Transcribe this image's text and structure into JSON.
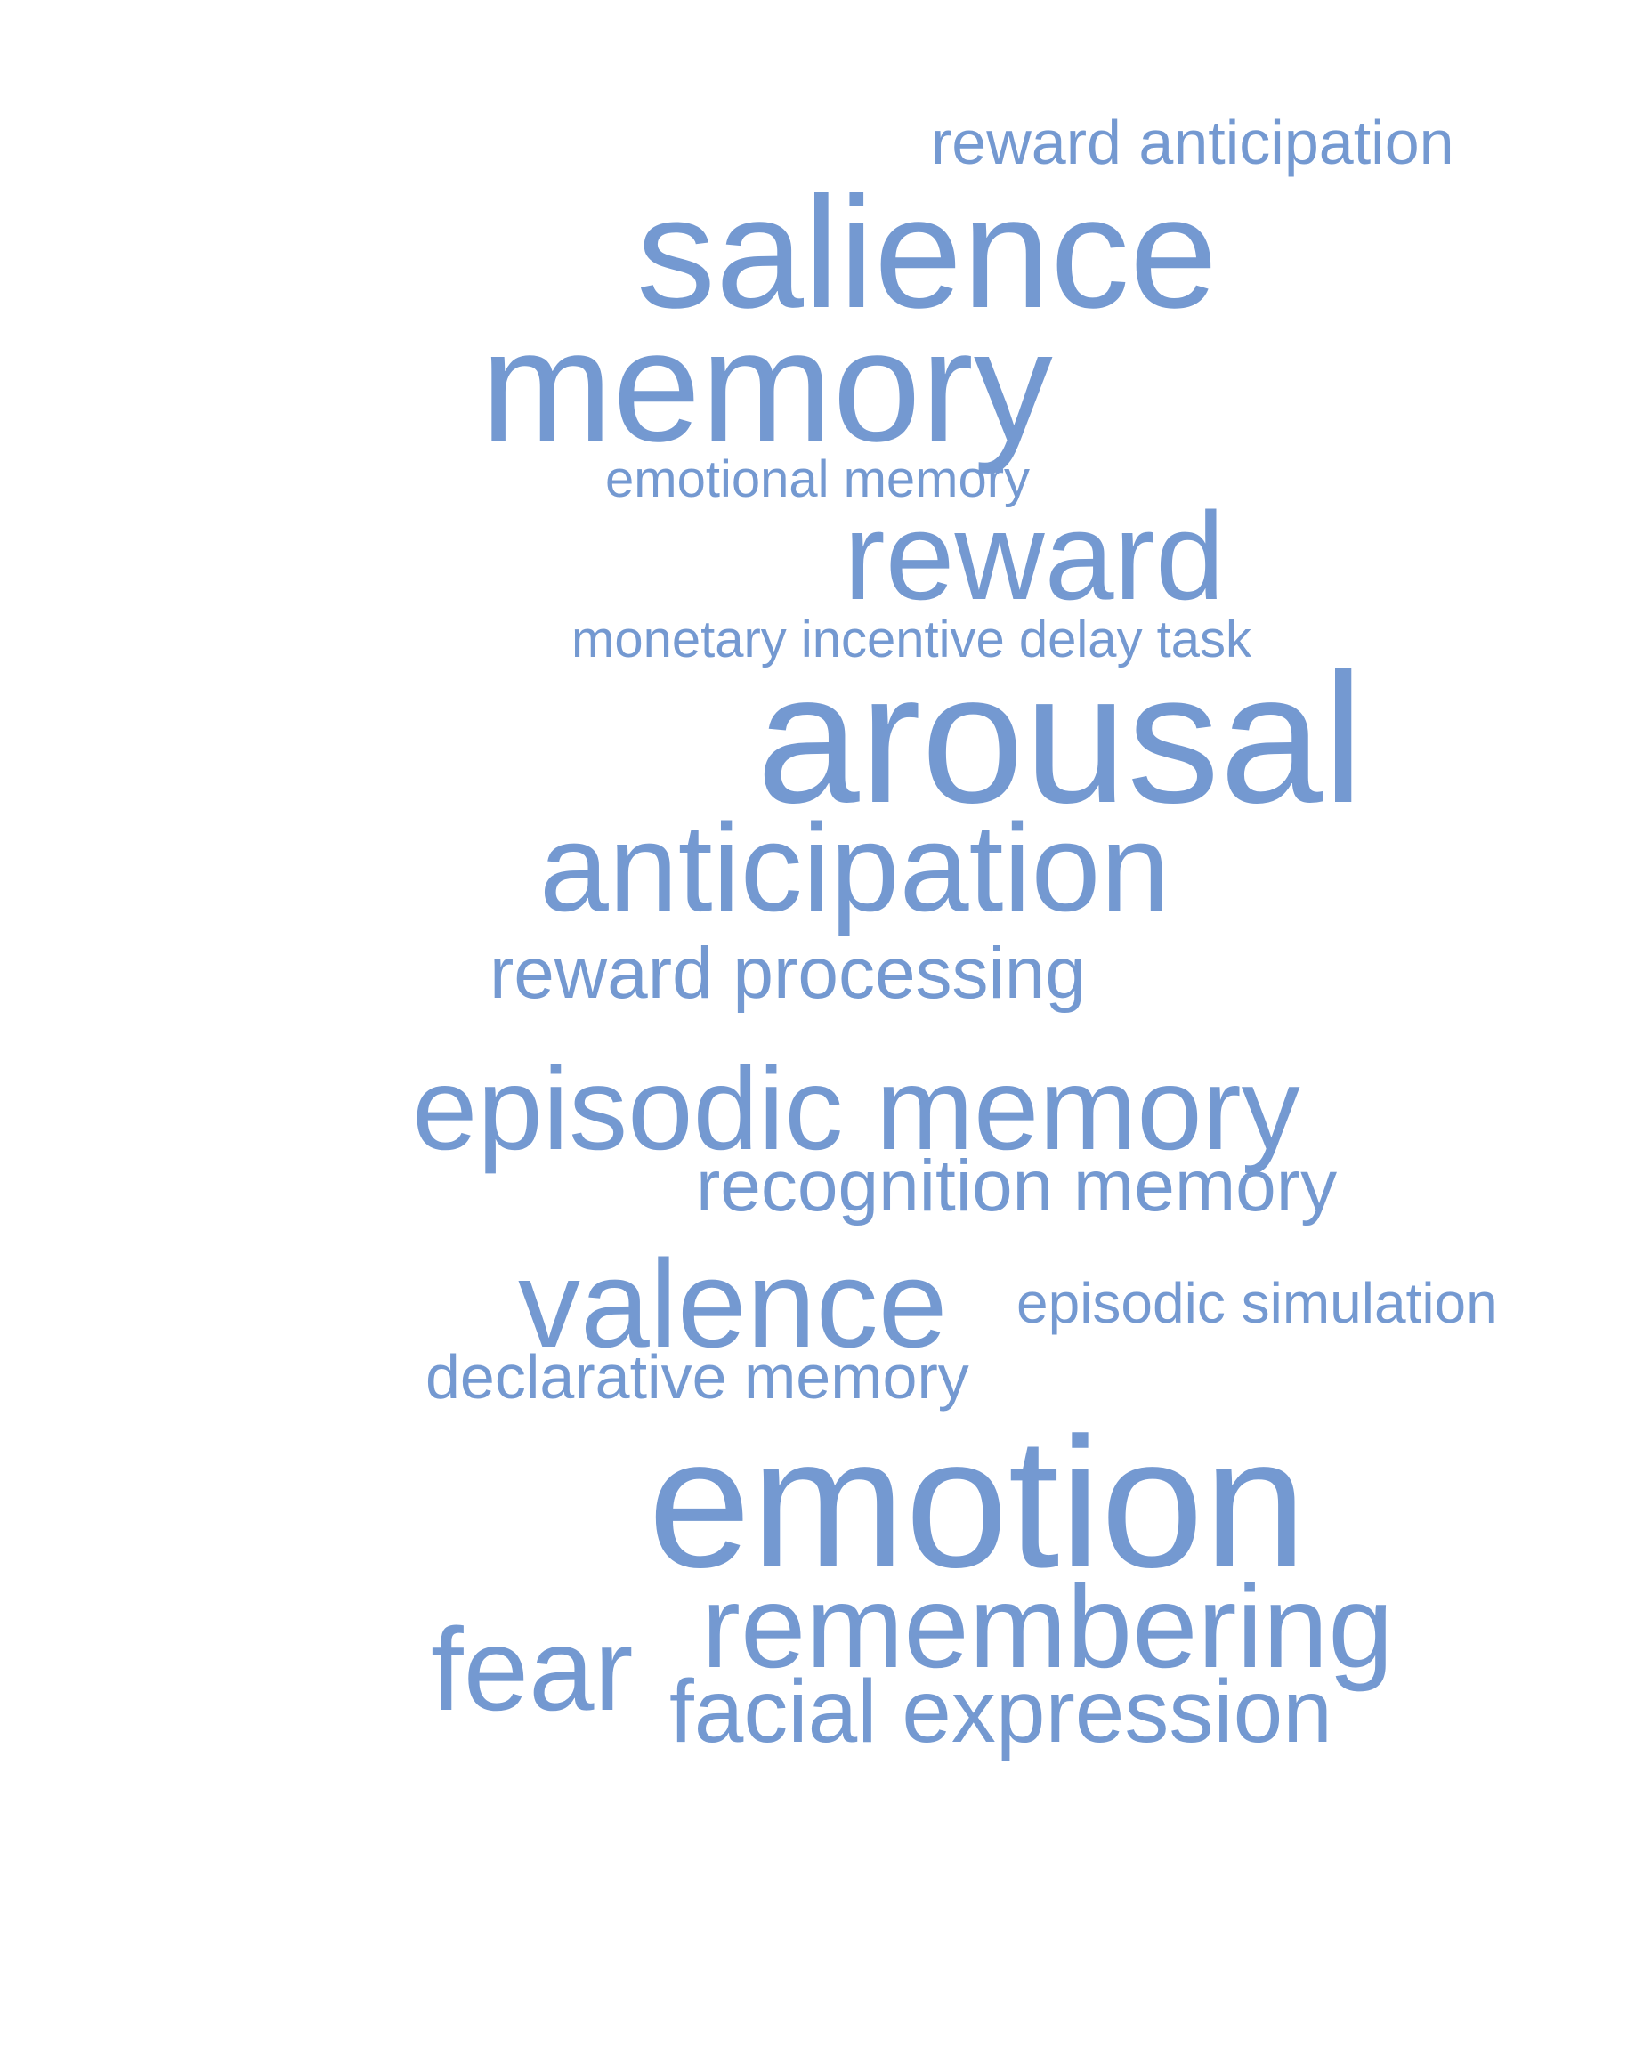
{
  "colors": {
    "background": "#ffffff",
    "word": "#7499d1"
  },
  "words": [
    "reward anticipation",
    "salience",
    "memory",
    "emotional memory",
    "reward",
    "monetary incentive delay task",
    "arousal",
    "anticipation",
    "reward processing",
    "episodic memory",
    "recognition memory",
    "valence",
    "episodic simulation",
    "declarative memory",
    "emotion",
    "remembering",
    "fear",
    "facial expression"
  ]
}
